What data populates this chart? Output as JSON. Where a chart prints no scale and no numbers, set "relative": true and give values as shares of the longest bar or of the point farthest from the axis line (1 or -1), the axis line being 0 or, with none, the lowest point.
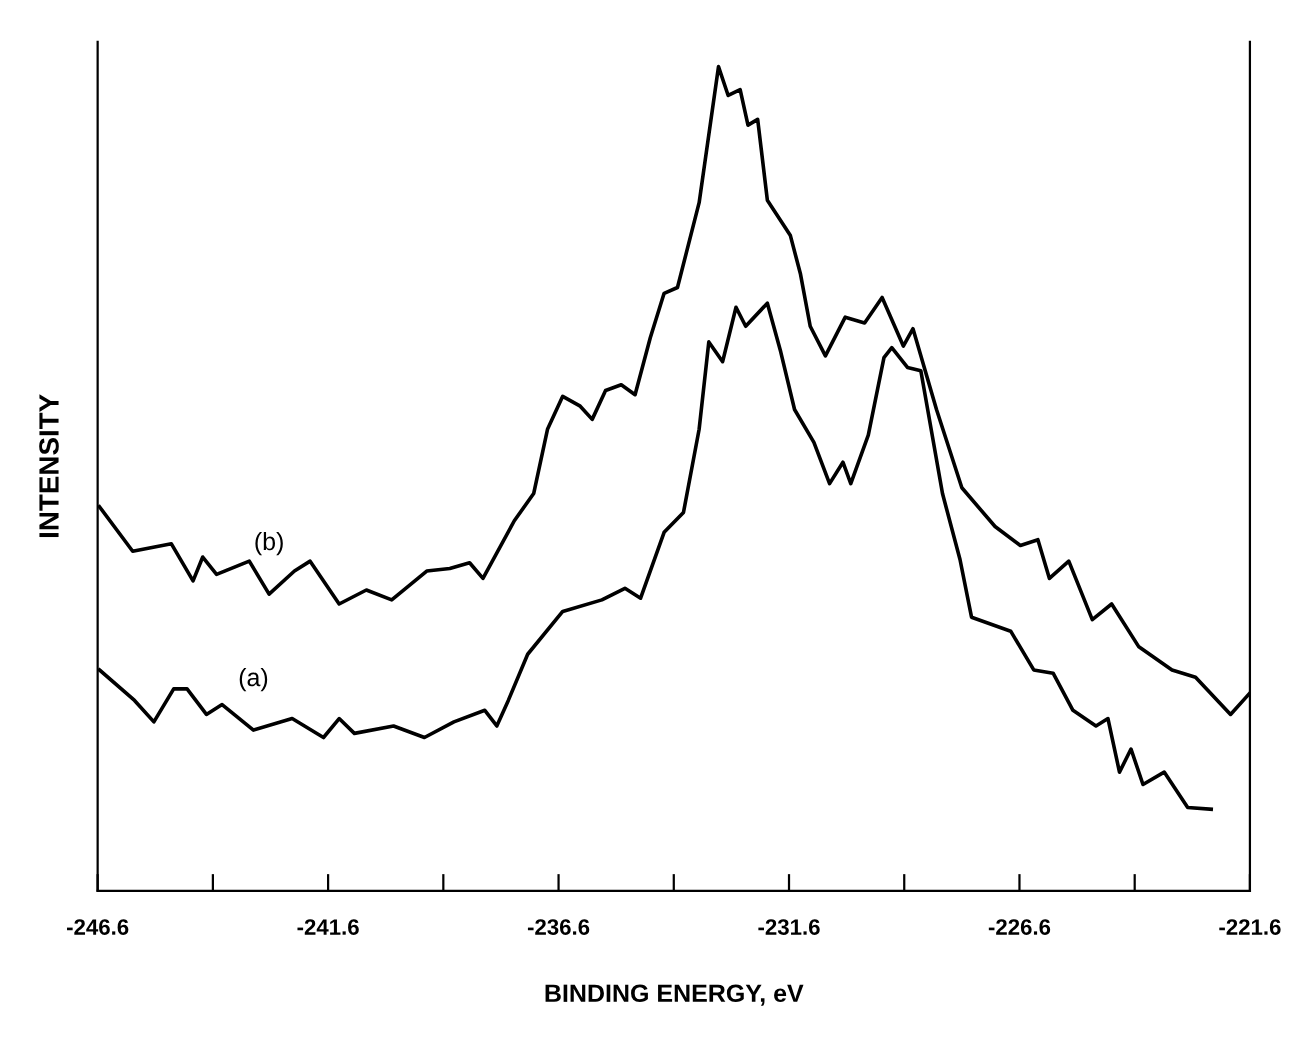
{
  "chart_data": {
    "type": "line",
    "relative": true,
    "xlabel": "BINDING ENERGY, eV",
    "ylabel": "INTENSITY",
    "xlim": [
      -246.6,
      -221.6
    ],
    "xticks": [
      -246.6,
      {
        "value": -244.1,
        "label": null
      },
      -241.6,
      {
        "value": -239.1,
        "label": null
      },
      -236.6,
      {
        "value": -234.1,
        "label": null
      },
      -231.6,
      {
        "value": -229.1,
        "label": null
      },
      -226.6,
      {
        "value": -224.1,
        "label": null
      },
      -221.6
    ],
    "grid": false,
    "legend": false,
    "marker": "none",
    "line_style": "solid",
    "series": [
      {
        "name": "(b)",
        "color": "#000000",
        "x": [
          -246.56,
          -245.84,
          -245.0,
          -244.53,
          -244.32,
          -244.02,
          -243.31,
          -242.88,
          -242.33,
          -241.99,
          -241.36,
          -240.77,
          -240.22,
          -239.46,
          -238.96,
          -238.53,
          -238.24,
          -237.56,
          -237.14,
          -236.84,
          -236.51,
          -236.13,
          -235.87,
          -235.58,
          -235.24,
          -234.94,
          -234.61,
          -234.31,
          -234.02,
          -233.55,
          -233.13,
          -232.92,
          -232.66,
          -232.49,
          -232.28,
          -232.07,
          -231.57,
          -231.35,
          -231.14,
          -230.81,
          -230.38,
          -229.96,
          -229.58,
          -229.12,
          -228.91,
          -228.4,
          -227.85,
          -227.13,
          -226.58,
          -226.2,
          -225.95,
          -225.53,
          -225.02,
          -224.6,
          -224.01,
          -223.29,
          -222.78,
          -222.02,
          -221.6
        ],
        "values": [
          0.466,
          0.412,
          0.421,
          0.376,
          0.405,
          0.384,
          0.4,
          0.36,
          0.388,
          0.4,
          0.348,
          0.365,
          0.353,
          0.388,
          0.391,
          0.398,
          0.379,
          0.449,
          0.482,
          0.56,
          0.6,
          0.588,
          0.572,
          0.607,
          0.614,
          0.602,
          0.671,
          0.725,
          0.732,
          0.835,
          1.0,
          0.965,
          0.972,
          0.929,
          0.936,
          0.838,
          0.795,
          0.748,
          0.685,
          0.649,
          0.696,
          0.689,
          0.72,
          0.661,
          0.682,
          0.584,
          0.489,
          0.442,
          0.419,
          0.426,
          0.379,
          0.4,
          0.329,
          0.348,
          0.296,
          0.268,
          0.259,
          0.214,
          0.24
        ]
      },
      {
        "name": "(a)",
        "color": "#000000",
        "x": [
          -246.56,
          -245.8,
          -245.38,
          -244.95,
          -244.66,
          -244.24,
          -243.9,
          -243.22,
          -242.38,
          -241.7,
          -241.36,
          -241.03,
          -240.18,
          -239.51,
          -238.87,
          -238.2,
          -237.94,
          -237.69,
          -237.27,
          -236.51,
          -235.66,
          -235.16,
          -234.82,
          -234.31,
          -233.89,
          -233.55,
          -233.34,
          -233.04,
          -232.75,
          -232.54,
          -232.07,
          -231.78,
          -231.48,
          -231.06,
          -230.72,
          -230.43,
          -230.26,
          -229.88,
          -229.54,
          -229.37,
          -229.03,
          -228.74,
          -228.27,
          -227.89,
          -227.64,
          -226.79,
          -226.29,
          -225.87,
          -225.44,
          -224.94,
          -224.68,
          -224.43,
          -224.18,
          -223.92,
          -223.46,
          -222.95,
          -222.44
        ],
        "values": [
          0.268,
          0.231,
          0.205,
          0.245,
          0.245,
          0.214,
          0.226,
          0.195,
          0.209,
          0.186,
          0.209,
          0.191,
          0.2,
          0.186,
          0.205,
          0.219,
          0.2,
          0.231,
          0.287,
          0.339,
          0.353,
          0.367,
          0.355,
          0.435,
          0.459,
          0.56,
          0.666,
          0.642,
          0.708,
          0.685,
          0.713,
          0.654,
          0.584,
          0.544,
          0.494,
          0.52,
          0.494,
          0.553,
          0.647,
          0.659,
          0.635,
          0.631,
          0.482,
          0.402,
          0.332,
          0.315,
          0.268,
          0.264,
          0.219,
          0.2,
          0.209,
          0.144,
          0.172,
          0.129,
          0.144,
          0.101,
          0.099
        ]
      }
    ]
  }
}
